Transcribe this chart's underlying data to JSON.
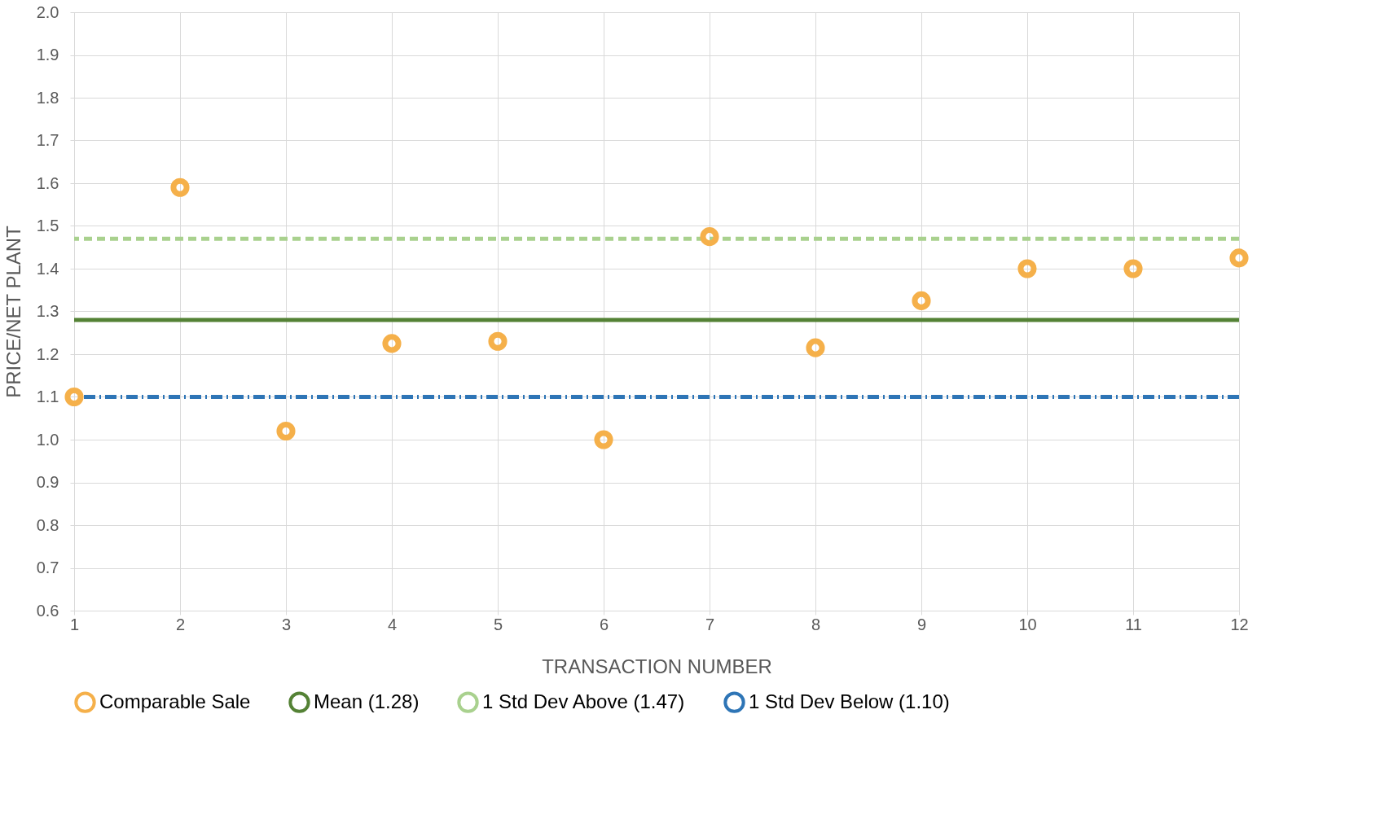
{
  "chart_data": {
    "type": "scatter",
    "xlabel": "TRANSACTION NUMBER",
    "ylabel": "PRICE/NET PLANT",
    "x": [
      1,
      2,
      3,
      4,
      5,
      6,
      7,
      8,
      9,
      10,
      11,
      12
    ],
    "series": [
      {
        "name": "Comparable Sale",
        "color": "#f5b04a",
        "values": [
          1.1,
          1.59,
          1.02,
          1.225,
          1.23,
          1.0,
          1.475,
          1.215,
          1.325,
          1.4,
          1.4,
          1.425
        ]
      }
    ],
    "ref_lines": [
      {
        "axis": "y",
        "value": 1.28,
        "label": "Mean (1.28)",
        "color": "#548235",
        "line_style": "solid"
      },
      {
        "axis": "y",
        "value": 1.47,
        "label": "1 Std Dev Above (1.47)",
        "color": "#a9d18e",
        "line_style": "dashed"
      },
      {
        "axis": "y",
        "value": 1.1,
        "label": "1 Std Dev Below (1.10)",
        "color": "#2e75b6",
        "line_style": "dotted"
      }
    ],
    "marker": "circle",
    "xlim": [
      1,
      12
    ],
    "xticks": [
      1,
      2,
      3,
      4,
      5,
      6,
      7,
      8,
      9,
      10,
      11,
      12
    ],
    "ylim": [
      0.6,
      2.0
    ],
    "yticks": [
      0.6,
      0.7,
      0.8,
      0.9,
      {
        "value": 1,
        "label": "1.0"
      },
      1.1,
      1.2,
      1.3,
      1.4,
      1.5,
      1.6,
      1.7,
      1.8,
      1.9,
      {
        "value": 2,
        "label": "2.0"
      }
    ],
    "grid": true,
    "legend": "bottom"
  }
}
